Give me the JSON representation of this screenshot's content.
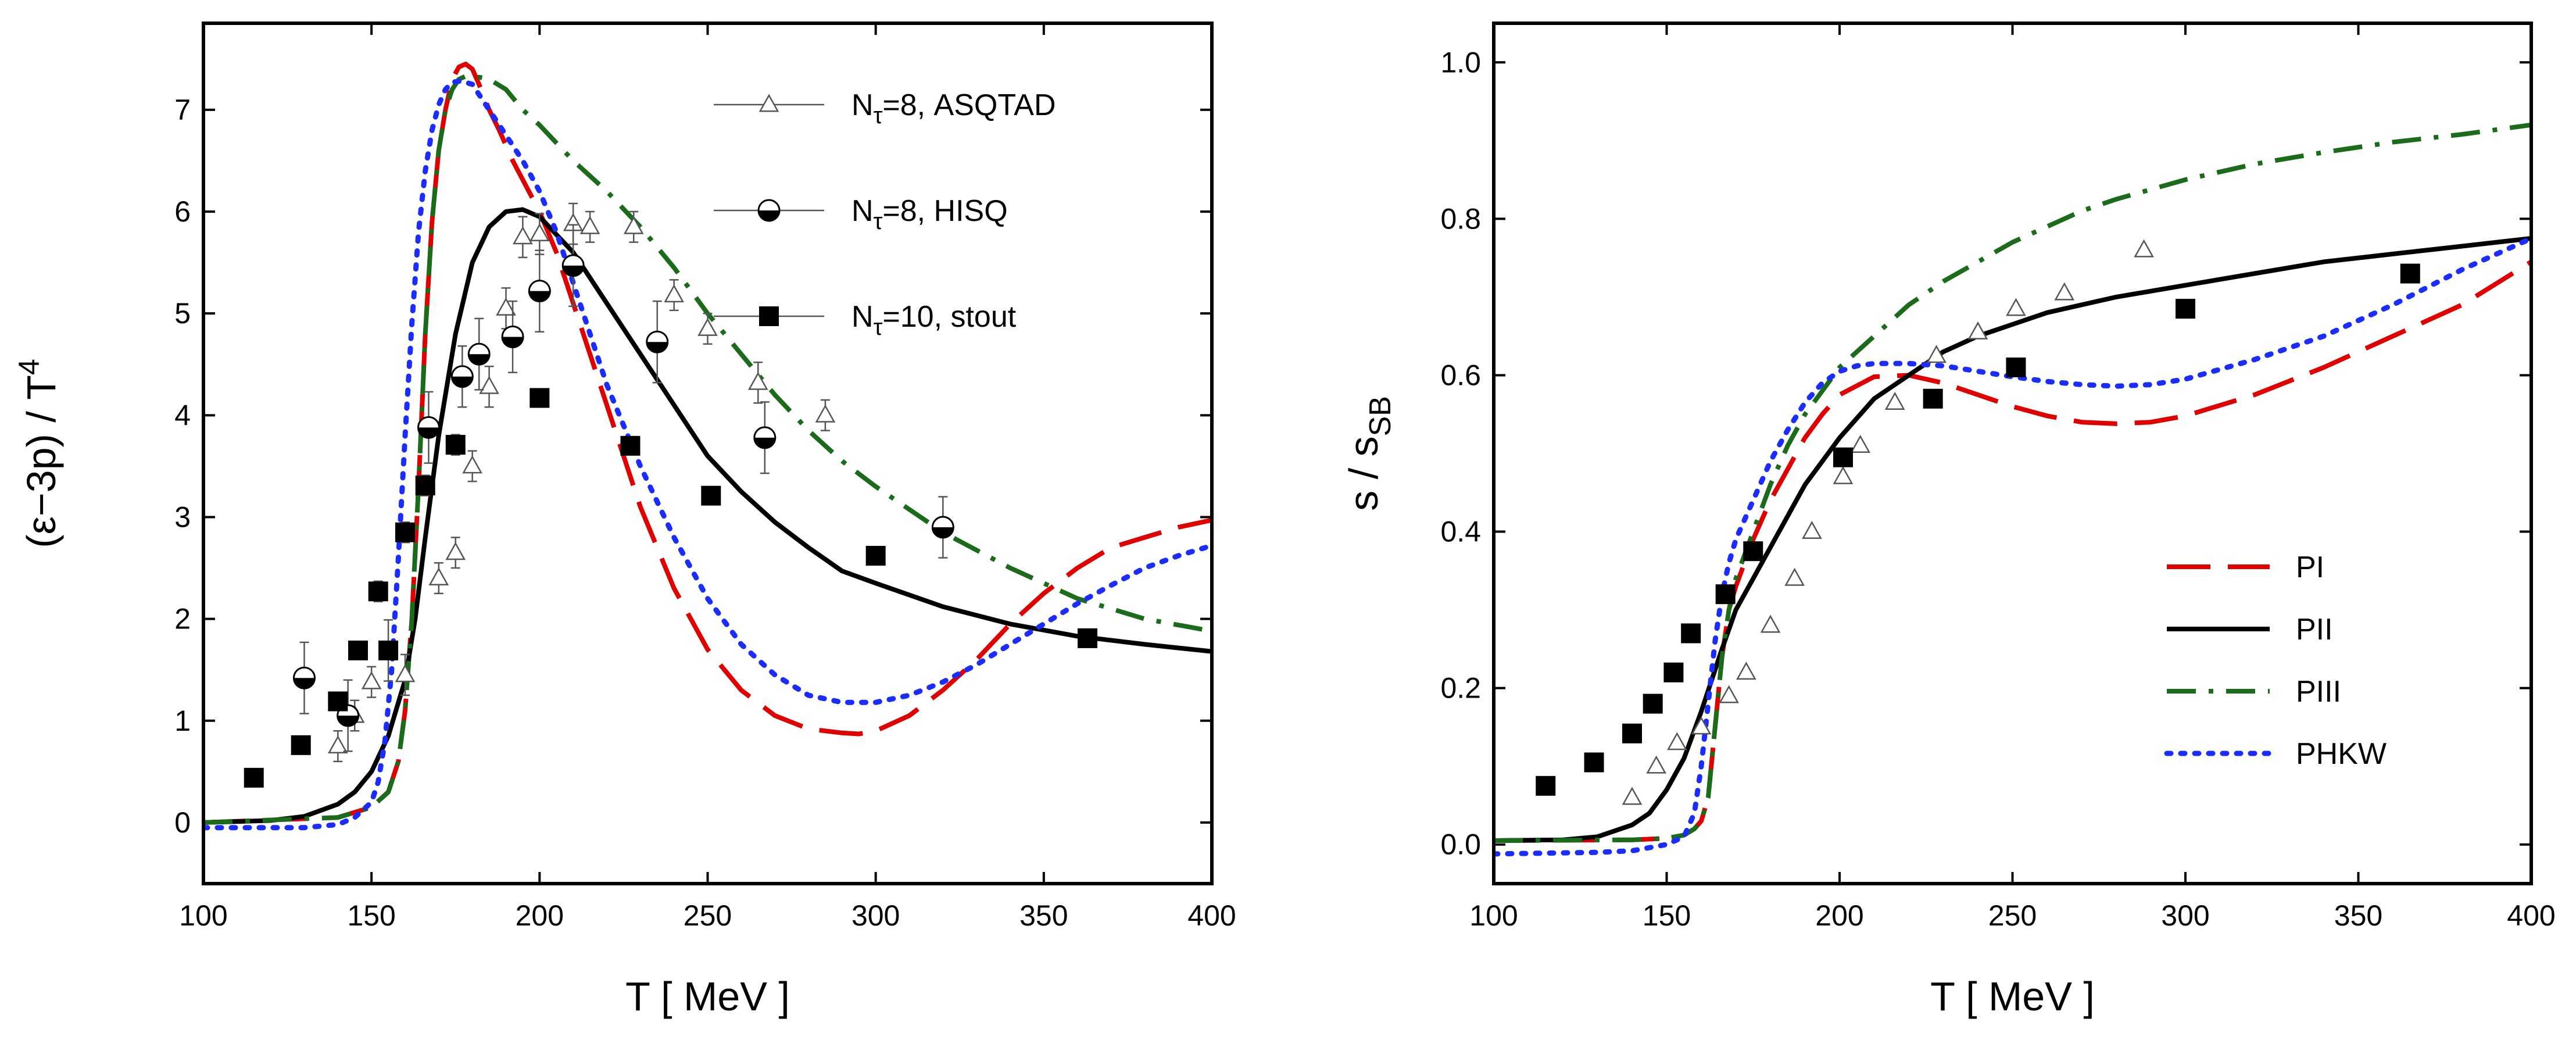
{
  "chart_data": [
    {
      "type": "line",
      "xlabel": "T  [ MeV ]",
      "ylabel_parts": {
        "main": "(ε−3p) / T",
        "sup": "4"
      },
      "xlim": [
        100,
        400
      ],
      "ylim": [
        -0.6,
        7.85
      ],
      "xticks": [
        "100",
        "150",
        "200",
        "250",
        "300",
        "350",
        "400"
      ],
      "yticks": [
        "0",
        "1",
        "2",
        "3",
        "4",
        "5",
        "6",
        "7"
      ],
      "legend_position": "top-right",
      "legend": [
        {
          "label_main": "N",
          "label_sub": "τ",
          "label_rest": "=8, ASQTAD",
          "marker": "open-triangle"
        },
        {
          "label_main": "N",
          "label_sub": "τ",
          "label_rest": "=8, HISQ",
          "marker": "half-filled-circle"
        },
        {
          "label_main": "N",
          "label_sub": "τ",
          "label_rest": "=10, stout",
          "marker": "filled-square"
        }
      ],
      "series": [
        {
          "name": "PI",
          "style": "dashed",
          "color": "#e00000",
          "x": [
            100,
            140,
            150,
            155,
            158,
            160,
            162,
            164,
            166,
            168,
            170,
            172,
            174,
            176,
            178,
            180,
            182,
            185,
            188,
            192,
            196,
            200,
            205,
            210,
            215,
            220,
            225,
            230,
            240,
            250,
            260,
            270,
            280,
            290,
            295,
            300,
            310,
            320,
            330,
            340,
            350,
            360,
            370,
            380,
            390,
            400
          ],
          "y": [
            0,
            0.05,
            0.15,
            0.3,
            0.6,
            1.1,
            2.0,
            3.3,
            4.8,
            5.9,
            6.6,
            7.0,
            7.3,
            7.42,
            7.45,
            7.4,
            7.25,
            7.0,
            6.8,
            6.5,
            6.25,
            6.0,
            5.6,
            5.1,
            4.6,
            4.1,
            3.6,
            3.1,
            2.3,
            1.7,
            1.3,
            1.05,
            0.92,
            0.88,
            0.87,
            0.9,
            1.05,
            1.3,
            1.6,
            1.95,
            2.25,
            2.5,
            2.7,
            2.8,
            2.9,
            2.97
          ]
        },
        {
          "name": "PII",
          "style": "solid",
          "color": "#000000",
          "x": [
            100,
            120,
            130,
            140,
            145,
            150,
            155,
            160,
            163,
            166,
            170,
            175,
            180,
            185,
            190,
            195,
            200,
            210,
            220,
            230,
            240,
            250,
            260,
            270,
            280,
            290,
            300,
            320,
            340,
            360,
            380,
            400
          ],
          "y": [
            0,
            0.02,
            0.06,
            0.18,
            0.3,
            0.5,
            0.85,
            1.4,
            2.0,
            2.8,
            3.8,
            4.8,
            5.5,
            5.85,
            6.0,
            6.02,
            5.95,
            5.6,
            5.1,
            4.6,
            4.1,
            3.6,
            3.25,
            2.95,
            2.7,
            2.47,
            2.35,
            2.12,
            1.95,
            1.83,
            1.75,
            1.68
          ]
        },
        {
          "name": "PIII",
          "style": "dash-dot",
          "color": "#1a6b1a",
          "x": [
            100,
            140,
            150,
            155,
            158,
            160,
            162,
            164,
            166,
            168,
            170,
            172,
            174,
            176,
            178,
            180,
            182,
            185,
            190,
            195,
            200,
            210,
            220,
            230,
            240,
            250,
            260,
            270,
            280,
            290,
            300,
            320,
            340,
            360,
            380,
            400
          ],
          "y": [
            0,
            0.05,
            0.15,
            0.3,
            0.6,
            1.1,
            2.0,
            3.3,
            4.8,
            5.9,
            6.6,
            7.0,
            7.2,
            7.3,
            7.33,
            7.33,
            7.32,
            7.3,
            7.2,
            7.0,
            6.85,
            6.5,
            6.2,
            5.85,
            5.45,
            5.0,
            4.6,
            4.2,
            3.85,
            3.55,
            3.3,
            2.85,
            2.5,
            2.2,
            2.0,
            1.88
          ]
        },
        {
          "name": "PHKW",
          "style": "dotted",
          "color": "#1a2cff",
          "x": [
            100,
            130,
            140,
            145,
            150,
            152,
            154,
            156,
            158,
            160,
            162,
            164,
            166,
            168,
            170,
            172,
            174,
            176,
            178,
            180,
            182,
            185,
            190,
            195,
            200,
            205,
            210,
            220,
            230,
            240,
            250,
            260,
            270,
            280,
            290,
            300,
            310,
            320,
            330,
            340,
            350,
            360,
            370,
            380,
            390,
            400
          ],
          "y": [
            -0.05,
            -0.05,
            -0.02,
            0.05,
            0.2,
            0.4,
            0.8,
            1.5,
            2.6,
            3.8,
            4.9,
            5.8,
            6.4,
            6.8,
            7.05,
            7.2,
            7.27,
            7.28,
            7.27,
            7.25,
            7.15,
            7.0,
            6.75,
            6.5,
            6.2,
            5.8,
            5.3,
            4.3,
            3.5,
            2.8,
            2.2,
            1.75,
            1.45,
            1.25,
            1.18,
            1.18,
            1.25,
            1.38,
            1.55,
            1.75,
            1.95,
            2.15,
            2.33,
            2.5,
            2.62,
            2.72
          ]
        }
      ],
      "points": [
        {
          "name": "Nτ=8, ASQTAD",
          "marker": "open-triangle",
          "x": [
            140,
            145,
            150,
            160,
            170,
            175,
            180,
            185,
            190,
            195,
            200,
            210,
            215,
            228,
            240,
            250,
            265,
            285
          ],
          "y": [
            0.75,
            1.05,
            1.38,
            1.45,
            2.4,
            2.65,
            3.5,
            4.28,
            5.05,
            5.75,
            5.78,
            5.88,
            5.85,
            5.85,
            5.18,
            4.85,
            4.32,
            4.0
          ],
          "err": [
            0.15,
            0.15,
            0.15,
            0.2,
            0.15,
            0.15,
            0.15,
            0.2,
            0.2,
            0.2,
            0.2,
            0.2,
            0.15,
            0.15,
            0.15,
            0.15,
            0.2,
            0.15
          ]
        },
        {
          "name": "Nτ=8, HISQ",
          "marker": "half-filled-circle",
          "x": [
            130,
            143,
            167,
            177,
            182,
            192,
            200,
            210,
            235,
            267,
            320
          ],
          "y": [
            1.42,
            1.05,
            3.88,
            4.38,
            4.6,
            4.77,
            5.22,
            5.47,
            4.72,
            3.78,
            2.9
          ],
          "err": [
            0.35,
            0.35,
            0.35,
            0.3,
            0.35,
            0.35,
            0.4,
            0.4,
            0.4,
            0.35,
            0.3
          ]
        },
        {
          "name": "Nτ=10, stout",
          "marker": "filled-square",
          "x": [
            115,
            129,
            140,
            146,
            152,
            155,
            160,
            166,
            175,
            200,
            227,
            251,
            300,
            363
          ],
          "y": [
            0.44,
            0.76,
            1.19,
            1.69,
            2.27,
            1.69,
            2.85,
            3.31,
            3.71,
            4.17,
            3.7,
            3.21,
            2.62,
            1.81
          ],
          "err": [
            0,
            0,
            0,
            0,
            0.1,
            0.3,
            0.1,
            0.1,
            0.1,
            0,
            0,
            0,
            0,
            0
          ]
        }
      ]
    },
    {
      "type": "line",
      "xlabel": "T  [ MeV ]",
      "ylabel_parts": {
        "main": "s / s",
        "sub": "SB"
      },
      "xlim": [
        100,
        400
      ],
      "ylim": [
        -0.05,
        1.05
      ],
      "xticks": [
        "100",
        "150",
        "200",
        "250",
        "300",
        "350",
        "400"
      ],
      "yticks": [
        "0.0",
        "0.2",
        "0.4",
        "0.6",
        "0.8",
        "1.0"
      ],
      "legend_position": "bottom-right",
      "legend": [
        {
          "label": "PI",
          "style": "dashed",
          "color": "#e00000"
        },
        {
          "label": "PII",
          "style": "solid",
          "color": "#000000"
        },
        {
          "label": "PIII",
          "style": "dash-dot",
          "color": "#1a6b1a"
        },
        {
          "label": "PHKW",
          "style": "dotted",
          "color": "#1a2cff"
        }
      ],
      "series": [
        {
          "name": "PI",
          "style": "dashed",
          "color": "#e00000",
          "x": [
            100,
            140,
            150,
            155,
            158,
            160,
            162,
            164,
            166,
            168,
            170,
            175,
            180,
            185,
            190,
            195,
            200,
            210,
            220,
            230,
            240,
            250,
            260,
            270,
            280,
            290,
            300,
            320,
            340,
            360,
            380,
            400
          ],
          "y": [
            0.005,
            0.006,
            0.008,
            0.012,
            0.02,
            0.03,
            0.06,
            0.15,
            0.24,
            0.3,
            0.33,
            0.39,
            0.44,
            0.48,
            0.52,
            0.55,
            0.575,
            0.598,
            0.6,
            0.59,
            0.575,
            0.56,
            0.548,
            0.54,
            0.538,
            0.54,
            0.548,
            0.575,
            0.61,
            0.65,
            0.69,
            0.745
          ]
        },
        {
          "name": "PII",
          "style": "solid",
          "color": "#000000",
          "x": [
            100,
            120,
            130,
            140,
            145,
            150,
            155,
            160,
            163,
            166,
            170,
            175,
            180,
            185,
            190,
            195,
            200,
            210,
            220,
            230,
            240,
            250,
            260,
            280,
            300,
            320,
            340,
            360,
            380,
            400
          ],
          "y": [
            0.005,
            0.006,
            0.01,
            0.025,
            0.04,
            0.07,
            0.11,
            0.17,
            0.21,
            0.25,
            0.3,
            0.34,
            0.38,
            0.42,
            0.46,
            0.49,
            0.52,
            0.57,
            0.6,
            0.63,
            0.65,
            0.665,
            0.68,
            0.7,
            0.715,
            0.73,
            0.745,
            0.755,
            0.765,
            0.775
          ]
        },
        {
          "name": "PIII",
          "style": "dash-dot",
          "color": "#1a6b1a",
          "x": [
            100,
            140,
            150,
            155,
            158,
            160,
            162,
            164,
            166,
            168,
            170,
            175,
            180,
            185,
            190,
            195,
            200,
            210,
            220,
            230,
            240,
            250,
            260,
            270,
            280,
            300,
            320,
            340,
            360,
            380,
            400
          ],
          "y": [
            0.005,
            0.006,
            0.008,
            0.012,
            0.02,
            0.03,
            0.06,
            0.15,
            0.24,
            0.3,
            0.34,
            0.4,
            0.46,
            0.51,
            0.55,
            0.58,
            0.61,
            0.65,
            0.69,
            0.72,
            0.745,
            0.77,
            0.79,
            0.81,
            0.825,
            0.85,
            0.87,
            0.885,
            0.898,
            0.908,
            0.92
          ]
        },
        {
          "name": "PHKW",
          "style": "dotted",
          "color": "#1a2cff",
          "x": [
            100,
            130,
            140,
            150,
            155,
            158,
            160,
            162,
            164,
            166,
            168,
            170,
            175,
            180,
            185,
            190,
            195,
            200,
            205,
            210,
            220,
            230,
            240,
            250,
            260,
            270,
            280,
            290,
            300,
            320,
            340,
            360,
            380,
            400
          ],
          "y": [
            -0.012,
            -0.01,
            -0.008,
            0.0,
            0.01,
            0.04,
            0.1,
            0.18,
            0.26,
            0.32,
            0.36,
            0.39,
            0.44,
            0.49,
            0.53,
            0.565,
            0.59,
            0.605,
            0.612,
            0.615,
            0.615,
            0.612,
            0.605,
            0.598,
            0.592,
            0.588,
            0.586,
            0.588,
            0.595,
            0.62,
            0.65,
            0.69,
            0.735,
            0.775
          ]
        }
      ],
      "points": [
        {
          "name": "open triangles",
          "marker": "open-triangle",
          "x": [
            140,
            147,
            153,
            160,
            168,
            173,
            180,
            187,
            192,
            201,
            206,
            216,
            228,
            240,
            251,
            265,
            288
          ],
          "y": [
            0.06,
            0.1,
            0.13,
            0.15,
            0.19,
            0.22,
            0.28,
            0.34,
            0.4,
            0.47,
            0.51,
            0.565,
            0.625,
            0.655,
            0.685,
            0.705,
            0.76
          ]
        },
        {
          "name": "filled squares",
          "marker": "filled-square",
          "x": [
            115,
            129,
            140,
            146,
            152,
            157,
            167,
            175,
            201,
            227,
            251,
            300,
            365
          ],
          "y": [
            0.075,
            0.105,
            0.142,
            0.18,
            0.22,
            0.27,
            0.32,
            0.375,
            0.495,
            0.57,
            0.61,
            0.685,
            0.73
          ]
        }
      ]
    }
  ]
}
